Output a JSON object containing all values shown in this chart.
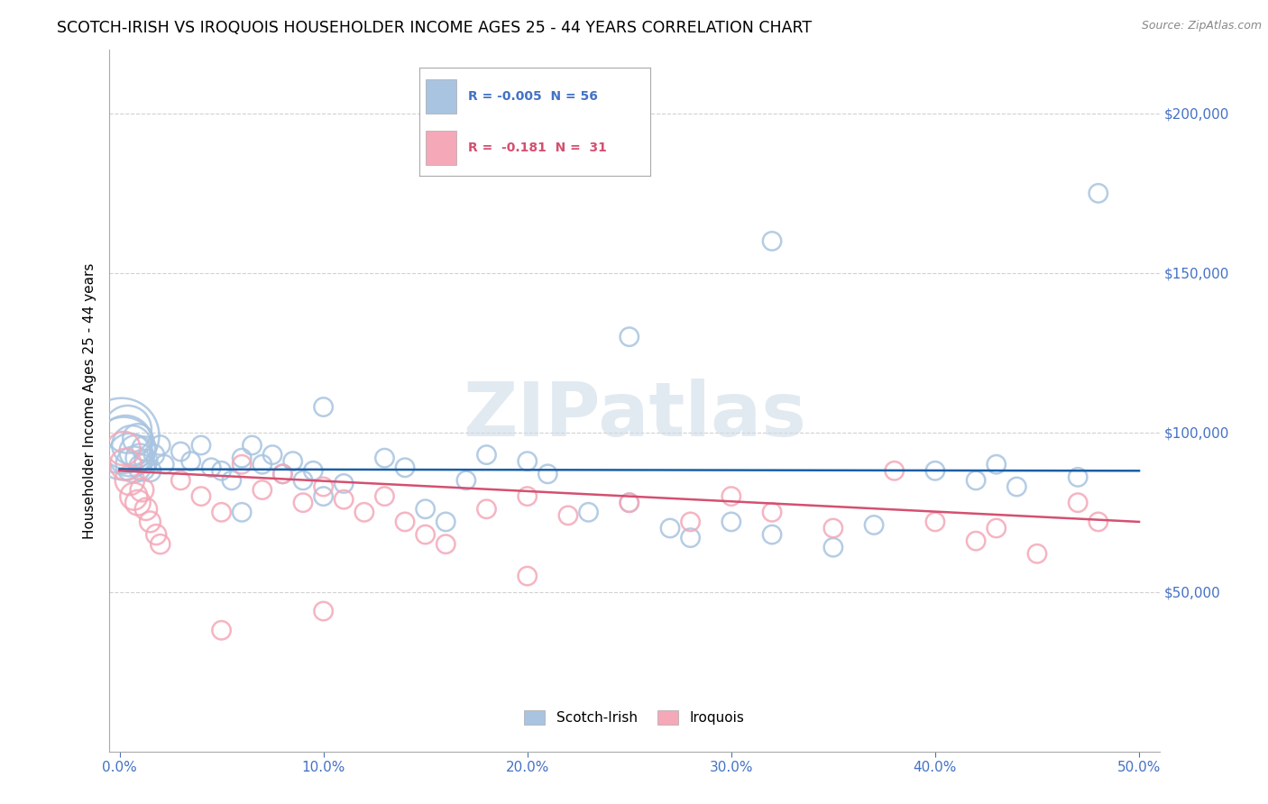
{
  "title": "SCOTCH-IRISH VS IROQUOIS HOUSEHOLDER INCOME AGES 25 - 44 YEARS CORRELATION CHART",
  "source": "Source: ZipAtlas.com",
  "ylabel": "Householder Income Ages 25 - 44 years",
  "xlabel_ticks": [
    "0.0%",
    "10.0%",
    "20.0%",
    "30.0%",
    "40.0%",
    "50.0%"
  ],
  "xlabel_vals": [
    0.0,
    0.1,
    0.2,
    0.3,
    0.4,
    0.5
  ],
  "ytick_labels": [
    "$50,000",
    "$100,000",
    "$150,000",
    "$200,000"
  ],
  "ytick_vals": [
    50000,
    100000,
    150000,
    200000
  ],
  "ylim": [
    0,
    220000
  ],
  "xlim": [
    -0.005,
    0.51
  ],
  "legend_labels": [
    "Scotch-Irish",
    "Iroquois"
  ],
  "scotch_irish_R": "-0.005",
  "scotch_irish_N": "56",
  "iroquois_R": "-0.181",
  "iroquois_N": "31",
  "blue_color": "#a8c4e0",
  "pink_color": "#f4a8b8",
  "blue_line_color": "#1a5ea6",
  "pink_line_color": "#d45070",
  "watermark_text": "ZIPatlas",
  "background_color": "#ffffff",
  "grid_color": "#cccccc",
  "si_points": [
    [
      0.001,
      99000,
      200
    ],
    [
      0.002,
      95000,
      140
    ],
    [
      0.003,
      97000,
      100
    ],
    [
      0.004,
      101000,
      80
    ],
    [
      0.005,
      93000,
      65
    ],
    [
      0.006,
      96000,
      55
    ],
    [
      0.007,
      90000,
      45
    ],
    [
      0.008,
      94000,
      38
    ],
    [
      0.009,
      98000,
      32
    ],
    [
      0.01,
      92000,
      28
    ],
    [
      0.011,
      89000,
      24
    ],
    [
      0.012,
      95000,
      20
    ],
    [
      0.013,
      91000,
      18
    ],
    [
      0.015,
      88000,
      16
    ],
    [
      0.017,
      93000,
      14
    ],
    [
      0.02,
      96000,
      13
    ],
    [
      0.022,
      90000,
      12
    ],
    [
      0.03,
      94000,
      12
    ],
    [
      0.035,
      91000,
      12
    ],
    [
      0.04,
      96000,
      12
    ],
    [
      0.045,
      89000,
      12
    ],
    [
      0.05,
      88000,
      12
    ],
    [
      0.055,
      85000,
      12
    ],
    [
      0.06,
      92000,
      12
    ],
    [
      0.065,
      96000,
      12
    ],
    [
      0.07,
      90000,
      12
    ],
    [
      0.075,
      93000,
      12
    ],
    [
      0.08,
      87000,
      12
    ],
    [
      0.085,
      91000,
      12
    ],
    [
      0.09,
      85000,
      12
    ],
    [
      0.095,
      88000,
      12
    ],
    [
      0.1,
      80000,
      12
    ],
    [
      0.11,
      84000,
      12
    ],
    [
      0.13,
      92000,
      12
    ],
    [
      0.14,
      89000,
      12
    ],
    [
      0.15,
      76000,
      12
    ],
    [
      0.16,
      72000,
      12
    ],
    [
      0.17,
      85000,
      12
    ],
    [
      0.18,
      93000,
      12
    ],
    [
      0.2,
      91000,
      12
    ],
    [
      0.21,
      87000,
      12
    ],
    [
      0.23,
      75000,
      12
    ],
    [
      0.25,
      78000,
      12
    ],
    [
      0.27,
      70000,
      12
    ],
    [
      0.28,
      67000,
      12
    ],
    [
      0.3,
      72000,
      12
    ],
    [
      0.32,
      68000,
      12
    ],
    [
      0.35,
      64000,
      12
    ],
    [
      0.37,
      71000,
      12
    ],
    [
      0.4,
      88000,
      12
    ],
    [
      0.42,
      85000,
      12
    ],
    [
      0.43,
      90000,
      12
    ],
    [
      0.44,
      83000,
      12
    ],
    [
      0.47,
      86000,
      12
    ],
    [
      0.48,
      175000,
      12
    ],
    [
      0.32,
      160000,
      12
    ],
    [
      0.25,
      130000,
      12
    ],
    [
      0.1,
      108000,
      12
    ],
    [
      0.06,
      75000,
      12
    ]
  ],
  "ir_points": [
    [
      0.002,
      95000,
      40
    ],
    [
      0.003,
      90000,
      35
    ],
    [
      0.005,
      85000,
      30
    ],
    [
      0.007,
      80000,
      26
    ],
    [
      0.009,
      78000,
      22
    ],
    [
      0.011,
      82000,
      19
    ],
    [
      0.013,
      76000,
      17
    ],
    [
      0.015,
      72000,
      15
    ],
    [
      0.018,
      68000,
      14
    ],
    [
      0.02,
      65000,
      13
    ],
    [
      0.03,
      85000,
      12
    ],
    [
      0.04,
      80000,
      12
    ],
    [
      0.05,
      75000,
      12
    ],
    [
      0.06,
      90000,
      12
    ],
    [
      0.07,
      82000,
      12
    ],
    [
      0.08,
      87000,
      12
    ],
    [
      0.09,
      78000,
      12
    ],
    [
      0.1,
      83000,
      12
    ],
    [
      0.11,
      79000,
      12
    ],
    [
      0.12,
      75000,
      12
    ],
    [
      0.13,
      80000,
      12
    ],
    [
      0.14,
      72000,
      12
    ],
    [
      0.15,
      68000,
      12
    ],
    [
      0.16,
      65000,
      12
    ],
    [
      0.18,
      76000,
      12
    ],
    [
      0.2,
      80000,
      12
    ],
    [
      0.22,
      74000,
      12
    ],
    [
      0.25,
      78000,
      12
    ],
    [
      0.28,
      72000,
      12
    ],
    [
      0.3,
      80000,
      12
    ],
    [
      0.32,
      75000,
      12
    ],
    [
      0.35,
      70000,
      12
    ],
    [
      0.38,
      88000,
      12
    ],
    [
      0.4,
      72000,
      12
    ],
    [
      0.42,
      66000,
      12
    ],
    [
      0.43,
      70000,
      12
    ],
    [
      0.45,
      62000,
      12
    ],
    [
      0.47,
      78000,
      12
    ],
    [
      0.48,
      72000,
      12
    ],
    [
      0.1,
      44000,
      12
    ],
    [
      0.05,
      38000,
      12
    ],
    [
      0.2,
      55000,
      12
    ]
  ],
  "si_line_y0": 88500,
  "si_line_y1": 88000,
  "ir_line_y0": 88000,
  "ir_line_y1": 72000
}
